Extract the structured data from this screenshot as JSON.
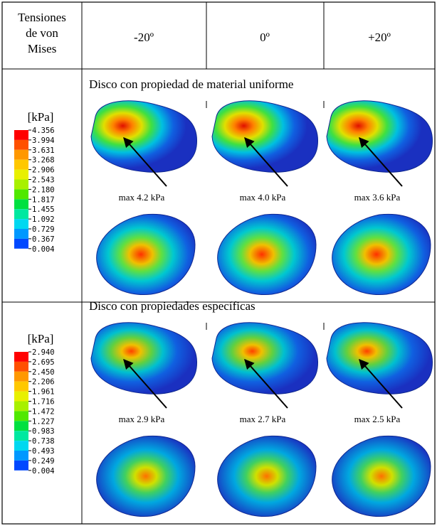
{
  "header": {
    "corner": [
      "Tensiones",
      "de von",
      "Mises"
    ],
    "columns": [
      "-20º",
      "0º",
      "+20º"
    ]
  },
  "sections": [
    {
      "title": "Disco con propiedad de material uniforme",
      "unit": "[kPa]",
      "scale": [
        "4.356",
        "3.994",
        "3.631",
        "3.268",
        "2.906",
        "2.543",
        "2.180",
        "1.817",
        "1.455",
        "1.092",
        "0.729",
        "0.367",
        "0.004"
      ],
      "max_labels": [
        "max 4.2 kPa",
        "max 4.0 kPa",
        "max 3.6 kPa"
      ]
    },
    {
      "title": "Disco con propiedades específicas",
      "unit": "[kPa]",
      "scale": [
        "2.940",
        "2.695",
        "2.450",
        "2.206",
        "1.961",
        "1.716",
        "1.472",
        "1.227",
        "0.983",
        "0.738",
        "0.493",
        "0.249",
        "0.004"
      ],
      "max_labels": [
        "max 2.9 kPa",
        "max 2.7 kPa",
        "max 2.5 kPa"
      ]
    }
  ]
}
